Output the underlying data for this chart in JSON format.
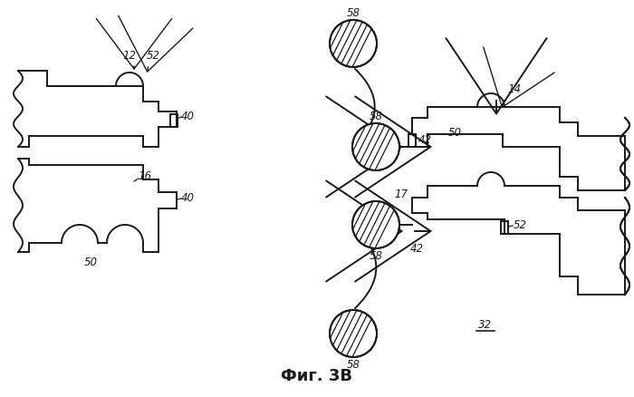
{
  "bg_color": "#ffffff",
  "line_color": "#1a1a1a",
  "title": "Фиг. 3B",
  "fig_width": 7.0,
  "fig_height": 4.38,
  "dpi": 100
}
